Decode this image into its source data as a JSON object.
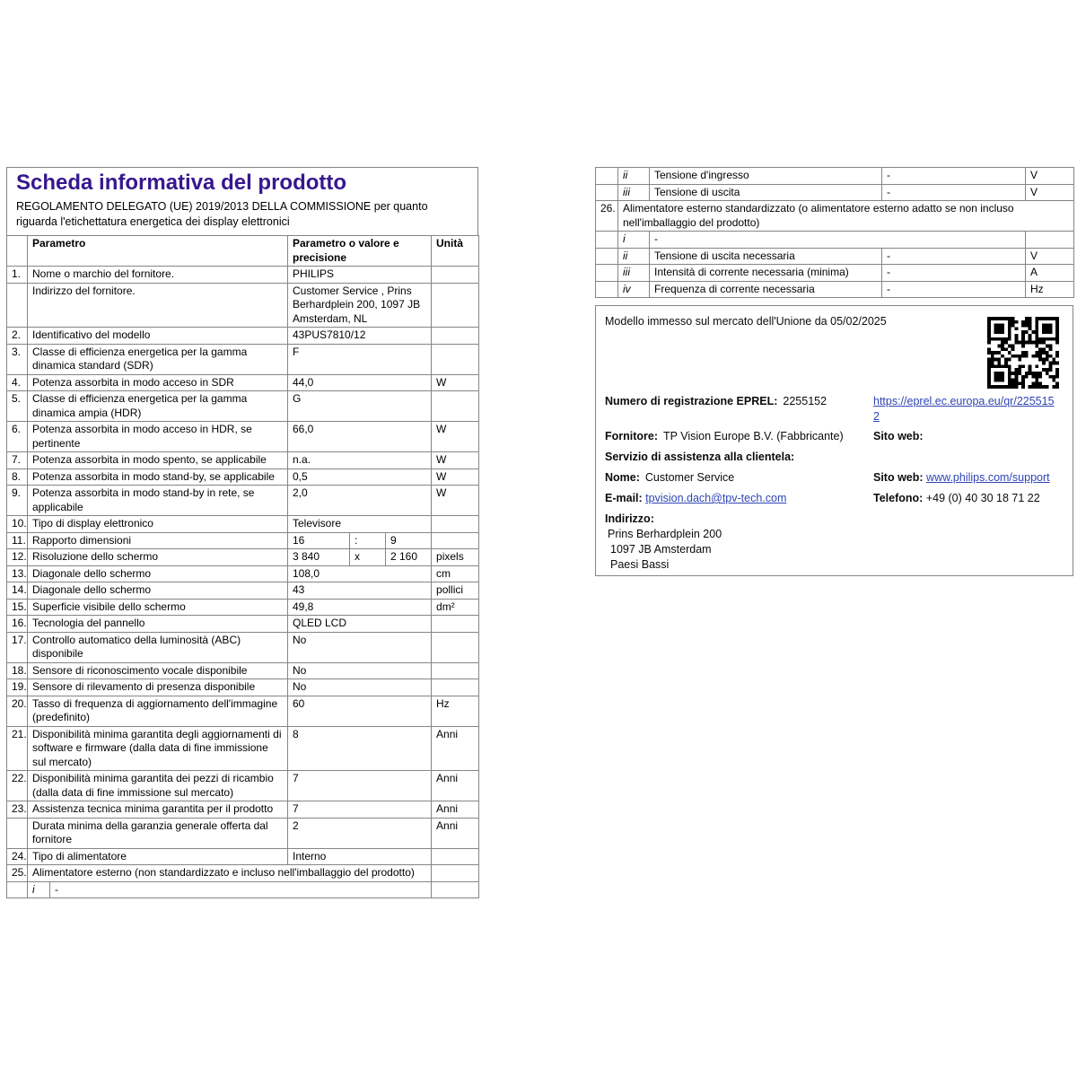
{
  "page": {
    "title": "Scheda informativa del prodotto",
    "regulation": "REGOLAMENTO DELEGATO (UE) 2019/2013 DELLA COMMISSIONE per quanto riguarda l'etichettatura energetica dei display elettronici"
  },
  "colors": {
    "title_accent": "#37178f",
    "link": "#2f45b4",
    "table_border": "#858585"
  },
  "left_table": {
    "headers": {
      "param": "Parametro",
      "value": "Parametro o valore e precisione",
      "unit": "Unità"
    },
    "rows": [
      {
        "type": "normal",
        "num": "1.",
        "label": "Nome o marchio del fornitore.",
        "value": "PHILIPS",
        "unit": "",
        "align": "left"
      },
      {
        "type": "normal",
        "num": "",
        "label": "Indirizzo del fornitore.",
        "value": "Customer Service , Prins Berhardplein 200, 1097 JB Amsterdam, NL",
        "unit": "",
        "align": "left"
      },
      {
        "type": "normal",
        "num": "2.",
        "label": "Identificativo del modello",
        "value": "43PUS7810/12",
        "unit": "",
        "align": "left"
      },
      {
        "type": "normal",
        "num": "3.",
        "label": "Classe di efficienza energetica per la gamma dinamica standard (SDR)",
        "value": "F",
        "unit": "",
        "align": "left"
      },
      {
        "type": "normal",
        "num": "4.",
        "label": "Potenza assorbita in modo acceso in SDR",
        "value": "44,0",
        "unit": "W",
        "align": "right"
      },
      {
        "type": "normal",
        "num": "5.",
        "label": "Classe di efficienza energetica per la gamma dinamica ampia (HDR)",
        "value": "G",
        "unit": "",
        "align": "left"
      },
      {
        "type": "normal",
        "num": "6.",
        "label": "Potenza assorbita in modo acceso in HDR, se pertinente",
        "value": "66,0",
        "unit": "W",
        "align": "right"
      },
      {
        "type": "normal",
        "num": "7.",
        "label": "Potenza assorbita in modo spento, se applicabile",
        "value": "n.a.",
        "unit": "W",
        "align": "right"
      },
      {
        "type": "normal",
        "num": "8.",
        "label": "Potenza assorbita in modo stand-by, se applicabile",
        "value": "0,5",
        "unit": "W",
        "align": "right"
      },
      {
        "type": "normal",
        "num": "9.",
        "label": "Potenza assorbita in modo stand-by in rete, se applicabile",
        "value": "2,0",
        "unit": "W",
        "align": "right"
      },
      {
        "type": "normal",
        "num": "10.",
        "label": "Tipo di display elettronico",
        "value": "Televisore",
        "unit": "",
        "align": "right"
      },
      {
        "type": "split",
        "num": "11.",
        "label": "Rapporto dimensioni",
        "split": [
          "16",
          ":",
          "9"
        ],
        "unit": ""
      },
      {
        "type": "split",
        "num": "12.",
        "label": "Risoluzione dello schermo",
        "split": [
          "3 840",
          "x",
          "2 160"
        ],
        "unit": "pixels"
      },
      {
        "type": "normal",
        "num": "13.",
        "label": "Diagonale dello schermo",
        "value": "108,0",
        "unit": "cm",
        "align": "right"
      },
      {
        "type": "normal",
        "num": "14.",
        "label": "Diagonale dello schermo",
        "value": "43",
        "unit": "pollici",
        "align": "right"
      },
      {
        "type": "normal",
        "num": "15.",
        "label": "Superficie visibile dello schermo",
        "value": "49,8",
        "unit": "dm²",
        "align": "right"
      },
      {
        "type": "normal",
        "num": "16.",
        "label": "Tecnologia del pannello",
        "value": "QLED LCD",
        "unit": "",
        "align": "right"
      },
      {
        "type": "normal",
        "num": "17.",
        "label": "Controllo automatico della luminosità (ABC) disponibile",
        "value": "No",
        "unit": "",
        "align": "right"
      },
      {
        "type": "normal",
        "num": "18.",
        "label": "Sensore di riconoscimento vocale disponibile",
        "value": "No",
        "unit": "",
        "align": "right"
      },
      {
        "type": "normal",
        "num": "19.",
        "label": "Sensore di rilevamento di presenza disponibile",
        "value": "No",
        "unit": "",
        "align": "right"
      },
      {
        "type": "normal",
        "num": "20.",
        "label": "Tasso di frequenza di aggiornamento dell'immagine (predefinito)",
        "value": "60",
        "unit": "Hz",
        "align": "right"
      },
      {
        "type": "normal",
        "num": "21.",
        "label": "Disponibilità minima garantita degli aggiornamenti di software e firmware (dalla data di fine immissione sul mercato)",
        "value": "8",
        "unit": "Anni",
        "align": "right"
      },
      {
        "type": "normal",
        "num": "22.",
        "label": "Disponibilità minima garantita dei pezzi di ricambio (dalla data di fine immissione sul mercato)",
        "value": "7",
        "unit": "Anni",
        "align": "right"
      },
      {
        "type": "normal",
        "num": "23.",
        "label": "Assistenza tecnica minima garantita per il prodotto",
        "value": "7",
        "unit": "Anni",
        "align": "right"
      },
      {
        "type": "normal",
        "num": "",
        "label": "Durata minima della garanzia generale offerta dal fornitore",
        "value": "2",
        "unit": "Anni",
        "align": "right"
      },
      {
        "type": "normal",
        "num": "24.",
        "label": "Tipo di alimentatore",
        "value": "Interno",
        "unit": "",
        "align": "left"
      },
      {
        "type": "span",
        "num": "25.",
        "label": "Alimentatore esterno (non standardizzato e incluso nell'imballaggio del prodotto)",
        "unit": ""
      },
      {
        "type": "sub",
        "num": "",
        "roman": "i",
        "value": "-",
        "unit": ""
      }
    ]
  },
  "right_table": {
    "rows": [
      {
        "type": "item",
        "num": "",
        "roman": "ii",
        "label": "Tensione d'ingresso",
        "value": "-",
        "unit": "V"
      },
      {
        "type": "item",
        "num": "",
        "roman": "iii",
        "label": "Tensione di uscita",
        "value": "-",
        "unit": "V"
      },
      {
        "type": "span",
        "num": "26.",
        "label": "Alimentatore esterno standardizzato (o alimentatore esterno adatto se non incluso nell'imballaggio del prodotto)"
      },
      {
        "type": "sub",
        "num": "",
        "roman": "i",
        "value": "-",
        "unit": ""
      },
      {
        "type": "item",
        "num": "",
        "roman": "ii",
        "label": "Tensione di uscita necessaria",
        "value": "-",
        "unit": "V"
      },
      {
        "type": "item",
        "num": "",
        "roman": "iii",
        "label": "Intensità di corrente necessaria (minima)",
        "value": "-",
        "unit": "A"
      },
      {
        "type": "item",
        "num": "",
        "roman": "iv",
        "label": "Frequenza di corrente necessaria",
        "value": "-",
        "unit": "Hz"
      }
    ]
  },
  "info_box": {
    "market_line": "Modello immesso sul mercato dell'Unione da 05/02/2025",
    "eprel_label": "Numero di registrazione EPREL:",
    "eprel_number": "2255152",
    "eprel_url": "https://eprel.ec.europa.eu/qr/2255152",
    "supplier_label": "Fornitore:",
    "supplier_value": "TP Vision Europe B.V. (Fabbricante)",
    "website_label": "Sito web:",
    "service_heading": "Servizio di assistenza alla clientela:",
    "name_label": "Nome:",
    "name_value": "Customer Service",
    "website2_label": "Sito web:",
    "website2_url": "www.philips.com/support",
    "email_label": "E-mail:",
    "email_value": "tpvision.dach@tpv-tech.com",
    "phone_label": "Telefono:",
    "phone_value": "+49 (0) 40 30 18 71 22",
    "address_label": "Indirizzo:",
    "address_lines": [
      "Prins Berhardplein 200",
      "1097 JB Amsterdam",
      "Paesi Bassi"
    ]
  }
}
